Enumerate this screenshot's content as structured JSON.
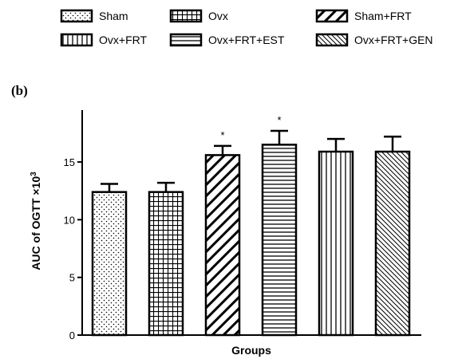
{
  "panel_label": "(b)",
  "chart_data": {
    "type": "bar",
    "categories": [
      "Sham",
      "Ovx",
      "Sham+FRT",
      "Ovx+FRT+EST",
      "Ovx+FRT",
      "Ovx+FRT+GEN"
    ],
    "values": [
      12.4,
      12.4,
      15.6,
      16.5,
      15.9,
      15.9
    ],
    "errors": [
      0.7,
      0.8,
      0.8,
      1.2,
      1.1,
      1.3
    ],
    "significance": [
      "",
      "",
      "*",
      "*",
      "",
      ""
    ],
    "patterns": [
      "dots",
      "grid",
      "diag-back",
      "horizontal",
      "vertical",
      "diag-forward"
    ],
    "legend": [
      {
        "label": "Sham",
        "pattern": "dots"
      },
      {
        "label": "Ovx",
        "pattern": "grid"
      },
      {
        "label": "Sham+FRT",
        "pattern": "diag-back"
      },
      {
        "label": "Ovx+FRT",
        "pattern": "vertical"
      },
      {
        "label": "Ovx+FRT+EST",
        "pattern": "horizontal"
      },
      {
        "label": "Ovx+FRT+GEN",
        "pattern": "diag-forward"
      }
    ],
    "xlabel": "Groups",
    "ylabel": "AUC of OGTT ×10",
    "ylabel_superscript": "3",
    "yticks": [
      0,
      5,
      10,
      15
    ],
    "ylim": [
      0,
      19.5
    ],
    "legend_position": "top",
    "grid": false
  }
}
